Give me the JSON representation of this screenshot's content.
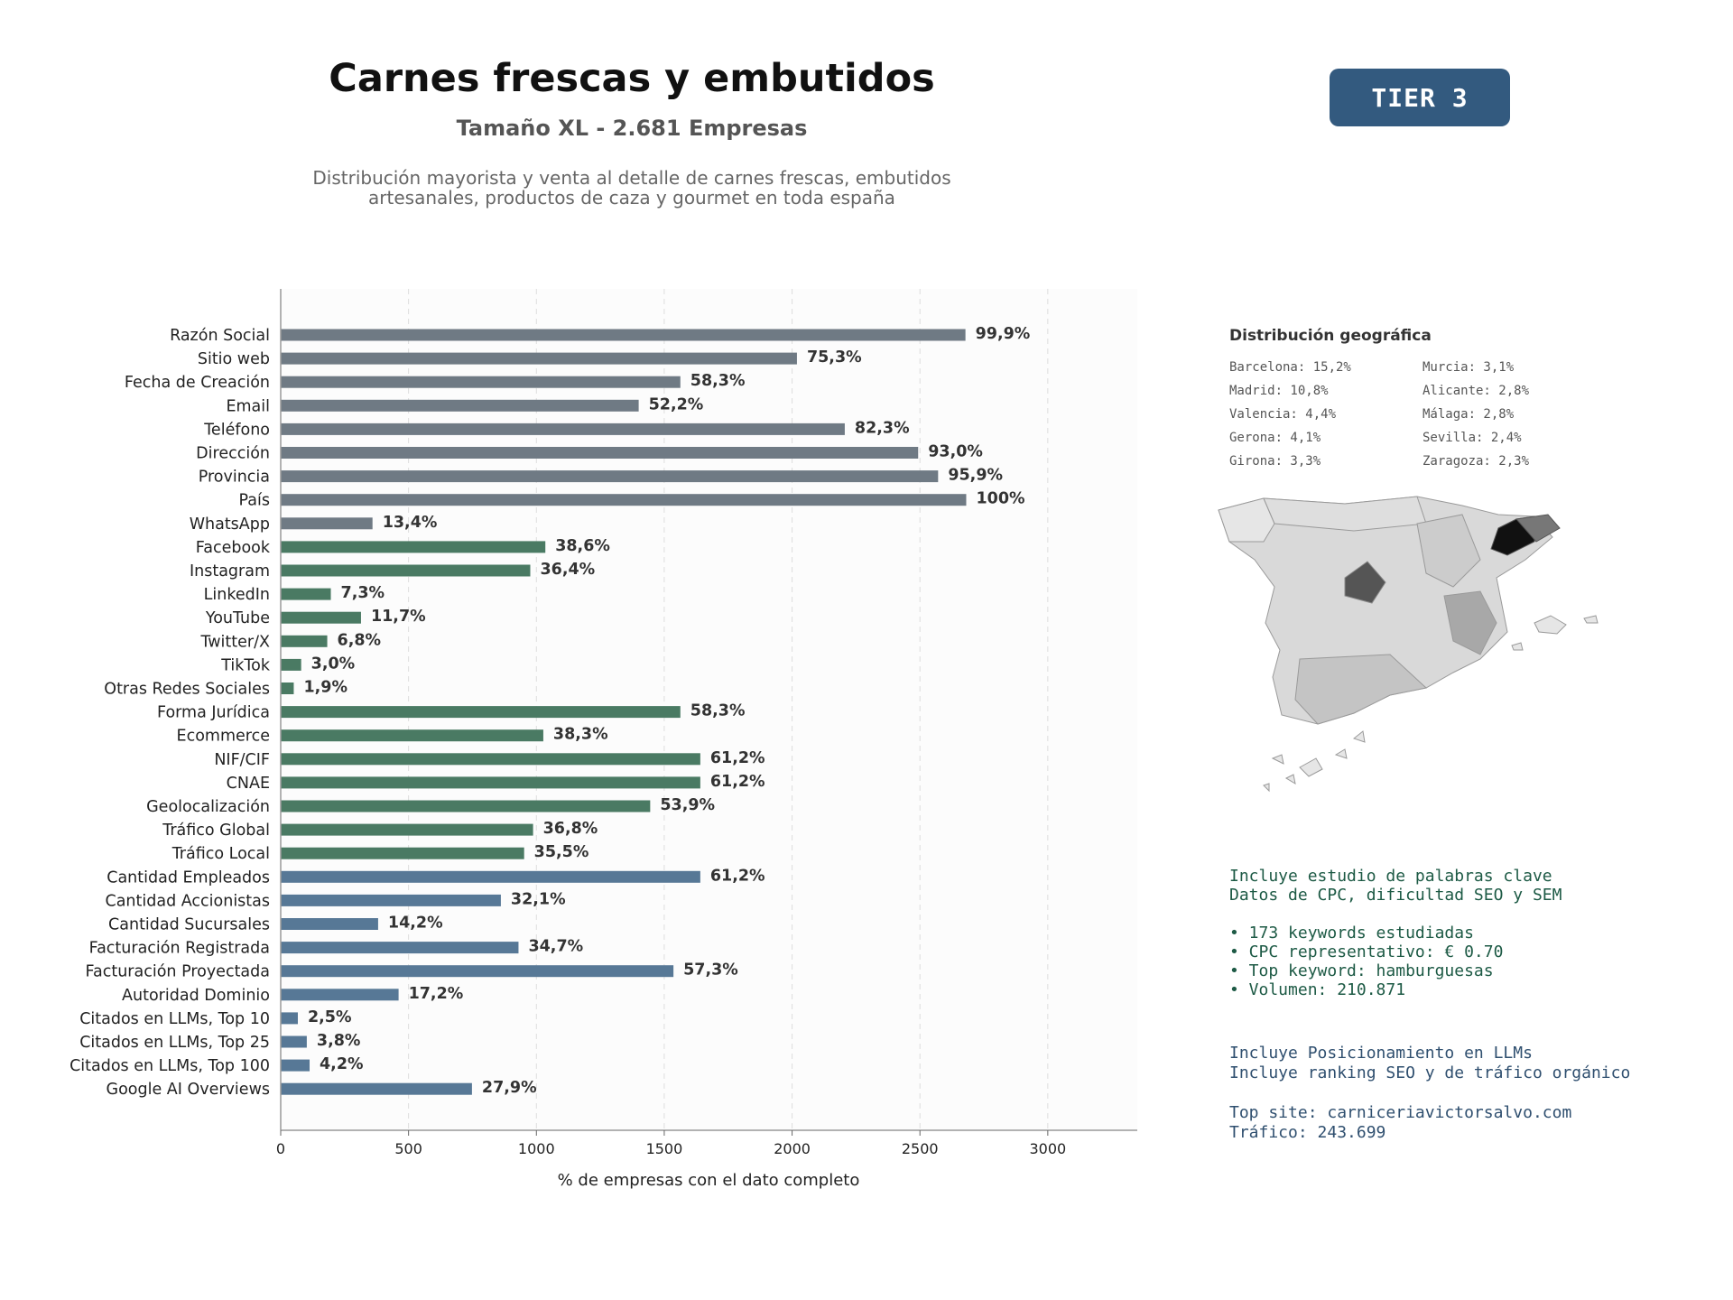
{
  "header": {
    "title": "Carnes frescas y embutidos",
    "subtitle": "Tamaño XL - 2.681 Empresas",
    "description_line1": "Distribución mayorista y venta al detalle de carnes frescas, embutidos",
    "description_line2": "artesanales, productos de caza y gourmet en toda españa",
    "tier_badge": "TIER 3"
  },
  "colors": {
    "gray_bars": "#6f7a84",
    "green_bars": "#4a7a63",
    "blue_bars": "#577896",
    "badge": "#335a7f"
  },
  "chart_data": {
    "type": "bar",
    "orientation": "horizontal",
    "xlabel": "% de empresas con el dato completo",
    "xlim": [
      0,
      3350
    ],
    "xticks": [
      0,
      500,
      1000,
      1500,
      2000,
      2500,
      3000
    ],
    "grid": "vertical dashed",
    "series": [
      {
        "category": "Razón Social",
        "value": 2678,
        "label": "99,9%",
        "group": "gray"
      },
      {
        "category": "Sitio web",
        "value": 2019,
        "label": "75,3%",
        "group": "gray"
      },
      {
        "category": "Fecha de Creación",
        "value": 1563,
        "label": "58,3%",
        "group": "gray"
      },
      {
        "category": "Email",
        "value": 1400,
        "label": "52,2%",
        "group": "gray"
      },
      {
        "category": "Teléfono",
        "value": 2206,
        "label": "82,3%",
        "group": "gray"
      },
      {
        "category": "Dirección",
        "value": 2493,
        "label": "93,0%",
        "group": "gray"
      },
      {
        "category": "Provincia",
        "value": 2571,
        "label": "95,9%",
        "group": "gray"
      },
      {
        "category": "País",
        "value": 2681,
        "label": "100%",
        "group": "gray"
      },
      {
        "category": "WhatsApp",
        "value": 359,
        "label": "13,4%",
        "group": "gray"
      },
      {
        "category": "Facebook",
        "value": 1035,
        "label": "38,6%",
        "group": "green"
      },
      {
        "category": "Instagram",
        "value": 976,
        "label": "36,4%",
        "group": "green"
      },
      {
        "category": "LinkedIn",
        "value": 196,
        "label": "7,3%",
        "group": "green"
      },
      {
        "category": "YouTube",
        "value": 314,
        "label": "11,7%",
        "group": "green"
      },
      {
        "category": "Twitter/X",
        "value": 182,
        "label": "6,8%",
        "group": "green"
      },
      {
        "category": "TikTok",
        "value": 80,
        "label": "3,0%",
        "group": "green"
      },
      {
        "category": "Otras Redes Sociales",
        "value": 51,
        "label": "1,9%",
        "group": "green"
      },
      {
        "category": "Forma Jurídica",
        "value": 1563,
        "label": "58,3%",
        "group": "green"
      },
      {
        "category": "Ecommerce",
        "value": 1027,
        "label": "38,3%",
        "group": "green"
      },
      {
        "category": "NIF/CIF",
        "value": 1641,
        "label": "61,2%",
        "group": "green"
      },
      {
        "category": "CNAE",
        "value": 1641,
        "label": "61,2%",
        "group": "green"
      },
      {
        "category": "Geolocalización",
        "value": 1445,
        "label": "53,9%",
        "group": "green"
      },
      {
        "category": "Tráfico Global",
        "value": 987,
        "label": "36,8%",
        "group": "green"
      },
      {
        "category": "Tráfico Local",
        "value": 952,
        "label": "35,5%",
        "group": "green"
      },
      {
        "category": "Cantidad Empleados",
        "value": 1641,
        "label": "61,2%",
        "group": "blue"
      },
      {
        "category": "Cantidad Accionistas",
        "value": 861,
        "label": "32,1%",
        "group": "blue"
      },
      {
        "category": "Cantidad Sucursales",
        "value": 381,
        "label": "14,2%",
        "group": "blue"
      },
      {
        "category": "Facturación Registrada",
        "value": 930,
        "label": "34,7%",
        "group": "blue"
      },
      {
        "category": "Facturación Proyectada",
        "value": 1536,
        "label": "57,3%",
        "group": "blue"
      },
      {
        "category": "Autoridad Dominio",
        "value": 461,
        "label": "17,2%",
        "group": "blue"
      },
      {
        "category": "Citados en LLMs, Top 10",
        "value": 67,
        "label": "2,5%",
        "group": "blue"
      },
      {
        "category": "Citados en LLMs, Top 25",
        "value": 102,
        "label": "3,8%",
        "group": "blue"
      },
      {
        "category": "Citados en LLMs, Top 100",
        "value": 113,
        "label": "4,2%",
        "group": "blue"
      },
      {
        "category": "Google AI Overviews",
        "value": 748,
        "label": "27,9%",
        "group": "blue"
      }
    ]
  },
  "geo": {
    "title": "Distribución geográfica",
    "items": [
      "Barcelona: 15,2%",
      "Murcia: 3,1%",
      "Madrid: 10,8%",
      "Alicante: 2,8%",
      "Valencia: 4,4%",
      "Málaga: 2,8%",
      "Gerona: 4,1%",
      "Sevilla: 2,4%",
      "Girona: 3,3%",
      "Zaragoza: 2,3%"
    ]
  },
  "keywords": {
    "line1": "Incluye estudio de palabras clave",
    "line2": "Datos de CPC, dificultad SEO y SEM",
    "bullets": [
      "• 173 keywords estudiadas",
      "• CPC representativo: € 0.70",
      "• Top keyword: hamburguesas",
      "• Volumen: 210.871"
    ]
  },
  "llm": {
    "line1": "Incluye Posicionamiento en LLMs",
    "line2": "Incluye ranking SEO y de tráfico orgánico",
    "top_site": "Top site: carniceriavictorsalvo.com",
    "traffic": "Tráfico: 243.699"
  }
}
